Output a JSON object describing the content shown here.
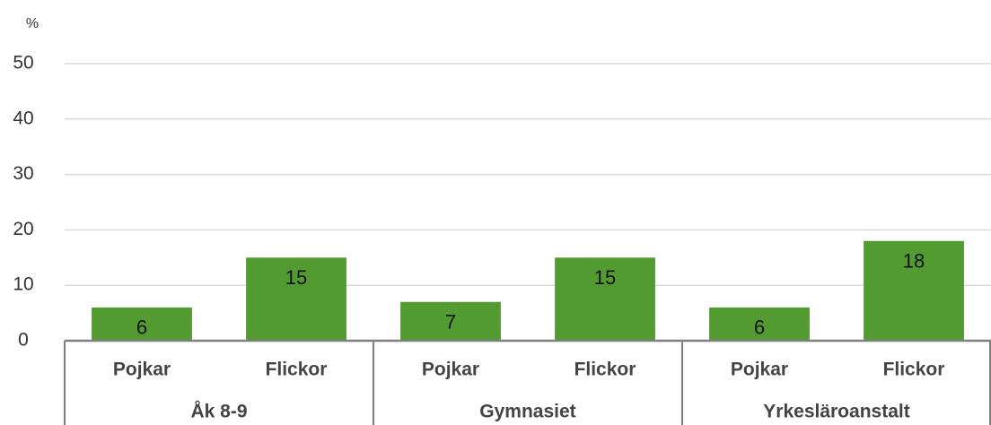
{
  "chart_data": {
    "type": "bar",
    "y_unit": "%",
    "categories": [
      "Pojkar",
      "Flickor",
      "Pojkar",
      "Flickor",
      "Pojkar",
      "Flickor"
    ],
    "groups": [
      "Åk 8-9",
      "Gymnasiet",
      "Yrkesläroanstalt"
    ],
    "values": [
      6,
      15,
      7,
      15,
      6,
      18
    ],
    "color": "#529b30",
    "ylim": [
      0,
      50
    ],
    "yticks": [
      0,
      10,
      20,
      30,
      40,
      50
    ],
    "grid": true
  }
}
